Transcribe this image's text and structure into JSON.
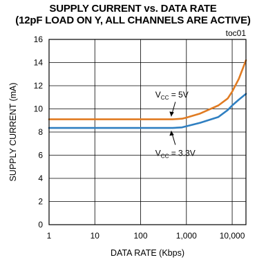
{
  "chart_data": {
    "type": "line",
    "title": "SUPPLY CURRENT vs. DATA RATE",
    "subtitle": "(12pF LOAD ON Y, ALL CHANNELS ARE ACTIVE)",
    "figure_id": "toc01",
    "xlabel": "DATA RATE (Kbps)",
    "ylabel": "SUPPLY CURRENT (mA)",
    "xscale": "log",
    "xlim": [
      1,
      20000
    ],
    "ylim": [
      0,
      16
    ],
    "xticks": [
      1,
      10,
      100,
      1000,
      10000
    ],
    "xtick_labels": [
      "1",
      "10",
      "100",
      "1,000",
      "10,000"
    ],
    "yticks": [
      0,
      2,
      4,
      6,
      8,
      10,
      12,
      14,
      16
    ],
    "ytick_labels": [
      "0",
      "2",
      "4",
      "6",
      "8",
      "10",
      "12",
      "14",
      "16"
    ],
    "grid": true,
    "series": [
      {
        "name": "VCC = 5V",
        "label_main": "V",
        "label_sub": "CC",
        "label_rest": " = 5V",
        "color": "#e07b22",
        "x": [
          1,
          10,
          100,
          500,
          800,
          1000,
          2000,
          5000,
          8000,
          10000,
          14000,
          20000
        ],
        "y": [
          9.1,
          9.1,
          9.1,
          9.1,
          9.15,
          9.25,
          9.6,
          10.3,
          10.9,
          11.5,
          12.6,
          14.2
        ]
      },
      {
        "name": "VCC = 3.3V",
        "label_main": "V",
        "label_sub": "CC",
        "label_rest": " = 3.3V",
        "color": "#2f7fc1",
        "x": [
          1,
          10,
          100,
          500,
          800,
          1000,
          2000,
          5000,
          8000,
          10000,
          14000,
          20000
        ],
        "y": [
          8.35,
          8.35,
          8.35,
          8.35,
          8.4,
          8.5,
          8.8,
          9.3,
          9.9,
          10.3,
          10.8,
          11.3
        ]
      }
    ]
  }
}
